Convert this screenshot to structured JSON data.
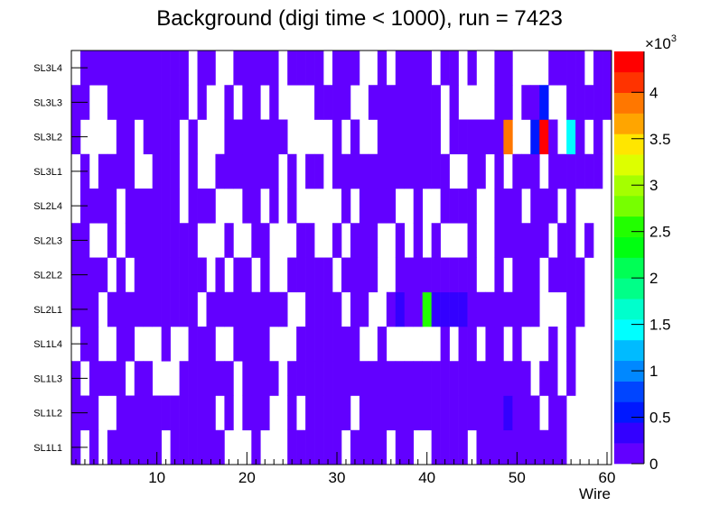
{
  "chart_data": {
    "type": "heatmap",
    "title": "Background (digi time < 1000), run = 7423",
    "xlabel": "Wire",
    "ylabel": "",
    "xlim": [
      0.5,
      60.5
    ],
    "x_ticks": [
      10,
      20,
      30,
      40,
      50,
      60
    ],
    "y_categories": [
      "SL1L1",
      "SL1L2",
      "SL1L3",
      "SL1L4",
      "SL2L1",
      "SL2L2",
      "SL2L3",
      "SL2L4",
      "SL3L1",
      "SL3L2",
      "SL3L3",
      "SL3L4"
    ],
    "zlim": [
      0,
      4440
    ],
    "z_exponent_label": "×10",
    "z_exponent_power": "3",
    "z_ticks": [
      {
        "value": 0,
        "label": "0"
      },
      {
        "value": 500,
        "label": "0.5"
      },
      {
        "value": 1000,
        "label": "1"
      },
      {
        "value": 1500,
        "label": "1.5"
      },
      {
        "value": 2000,
        "label": "2"
      },
      {
        "value": 2500,
        "label": "2.5"
      },
      {
        "value": 3000,
        "label": "3"
      },
      {
        "value": 3500,
        "label": "3.5"
      },
      {
        "value": 4000,
        "label": "4"
      }
    ],
    "palette": [
      "#6200ff",
      "#3300ff",
      "#0018ff",
      "#0045ff",
      "#0088ff",
      "#00bbff",
      "#00ffff",
      "#00ffcc",
      "#00ff88",
      "#00ff55",
      "#00ff11",
      "#22ff00",
      "#77ff00",
      "#a5ff00",
      "#ddff00",
      "#ffe600",
      "#ffa500",
      "#ff7700",
      "#ff3300",
      "#ff0000"
    ],
    "z": [
      [
        100,
        0,
        100,
        0,
        100,
        100,
        100,
        100,
        100,
        100,
        0,
        100,
        100,
        100,
        100,
        100,
        100,
        0,
        0,
        0,
        100,
        0,
        0,
        0,
        100,
        100,
        100,
        100,
        100,
        100,
        0,
        100,
        100,
        100,
        100,
        0,
        100,
        100,
        0,
        0,
        100,
        100,
        100,
        100,
        0,
        100,
        100,
        100,
        100,
        100,
        100,
        100,
        100,
        100,
        100,
        0,
        0,
        0,
        0,
        0
      ],
      [
        100,
        100,
        100,
        0,
        0,
        100,
        100,
        100,
        100,
        100,
        100,
        100,
        100,
        100,
        100,
        100,
        0,
        100,
        0,
        100,
        100,
        100,
        0,
        0,
        100,
        0,
        100,
        100,
        100,
        100,
        100,
        0,
        100,
        100,
        100,
        100,
        100,
        100,
        100,
        100,
        100,
        100,
        100,
        100,
        100,
        100,
        100,
        100,
        300,
        100,
        100,
        100,
        0,
        100,
        100,
        0,
        0,
        0,
        0,
        0
      ],
      [
        100,
        0,
        100,
        100,
        100,
        100,
        0,
        100,
        100,
        0,
        0,
        0,
        100,
        100,
        100,
        100,
        100,
        100,
        0,
        100,
        100,
        100,
        100,
        0,
        100,
        100,
        100,
        100,
        100,
        100,
        100,
        100,
        100,
        100,
        100,
        100,
        100,
        100,
        100,
        100,
        100,
        100,
        100,
        100,
        100,
        100,
        100,
        100,
        100,
        100,
        100,
        0,
        100,
        100,
        0,
        100,
        0,
        0,
        0,
        0
      ],
      [
        0,
        100,
        100,
        0,
        0,
        100,
        100,
        0,
        0,
        0,
        100,
        0,
        0,
        100,
        100,
        100,
        0,
        0,
        100,
        100,
        100,
        100,
        0,
        0,
        0,
        100,
        100,
        100,
        100,
        100,
        100,
        100,
        0,
        0,
        100,
        0,
        0,
        0,
        0,
        0,
        0,
        100,
        0,
        100,
        100,
        0,
        100,
        100,
        0,
        100,
        0,
        0,
        0,
        100,
        0,
        100,
        0,
        0,
        0,
        0
      ],
      [
        100,
        100,
        100,
        0,
        100,
        100,
        100,
        100,
        100,
        100,
        100,
        100,
        100,
        100,
        0,
        100,
        100,
        100,
        100,
        100,
        100,
        100,
        100,
        100,
        0,
        0,
        100,
        100,
        100,
        100,
        0,
        100,
        100,
        0,
        0,
        100,
        300,
        100,
        100,
        2600,
        300,
        300,
        300,
        300,
        100,
        100,
        100,
        100,
        100,
        100,
        100,
        100,
        0,
        0,
        0,
        100,
        100,
        0,
        0,
        0
      ],
      [
        100,
        100,
        100,
        100,
        0,
        100,
        0,
        100,
        100,
        100,
        100,
        100,
        100,
        100,
        100,
        0,
        100,
        0,
        100,
        100,
        0,
        100,
        0,
        0,
        100,
        100,
        100,
        100,
        100,
        0,
        100,
        100,
        100,
        100,
        0,
        0,
        100,
        100,
        100,
        100,
        100,
        100,
        100,
        100,
        100,
        0,
        0,
        100,
        0,
        100,
        100,
        100,
        0,
        100,
        100,
        100,
        100,
        0,
        0,
        0
      ],
      [
        100,
        100,
        0,
        0,
        100,
        0,
        100,
        100,
        100,
        100,
        100,
        100,
        100,
        100,
        0,
        0,
        0,
        100,
        0,
        0,
        100,
        100,
        0,
        0,
        0,
        100,
        100,
        0,
        0,
        100,
        0,
        100,
        100,
        100,
        0,
        0,
        100,
        0,
        100,
        0,
        100,
        0,
        0,
        0,
        100,
        0,
        0,
        100,
        100,
        100,
        100,
        100,
        100,
        0,
        100,
        100,
        0,
        100,
        0,
        0
      ],
      [
        0,
        100,
        100,
        100,
        100,
        0,
        100,
        100,
        100,
        100,
        100,
        100,
        0,
        100,
        100,
        100,
        0,
        0,
        0,
        100,
        100,
        0,
        100,
        0,
        100,
        0,
        0,
        0,
        0,
        0,
        100,
        0,
        100,
        100,
        100,
        100,
        0,
        0,
        100,
        0,
        0,
        100,
        100,
        100,
        100,
        0,
        0,
        100,
        100,
        100,
        0,
        100,
        100,
        100,
        0,
        100,
        0,
        0,
        0,
        0
      ],
      [
        0,
        100,
        0,
        100,
        100,
        100,
        100,
        0,
        0,
        100,
        100,
        100,
        0,
        100,
        0,
        0,
        100,
        100,
        100,
        100,
        100,
        100,
        100,
        0,
        100,
        0,
        100,
        100,
        0,
        100,
        100,
        100,
        100,
        100,
        100,
        100,
        100,
        100,
        100,
        100,
        100,
        100,
        0,
        0,
        100,
        100,
        0,
        100,
        0,
        100,
        100,
        100,
        0,
        100,
        100,
        100,
        100,
        100,
        100,
        0
      ],
      [
        100,
        0,
        0,
        0,
        0,
        100,
        100,
        0,
        100,
        100,
        100,
        100,
        0,
        100,
        0,
        0,
        0,
        100,
        100,
        100,
        100,
        100,
        100,
        100,
        0,
        0,
        0,
        0,
        0,
        100,
        0,
        100,
        0,
        0,
        100,
        100,
        100,
        100,
        100,
        100,
        100,
        0,
        100,
        100,
        100,
        100,
        100,
        100,
        3900,
        0,
        0,
        550,
        4400,
        100,
        0,
        1500,
        100,
        0,
        100,
        0
      ],
      [
        100,
        100,
        0,
        0,
        100,
        100,
        100,
        100,
        100,
        100,
        100,
        100,
        100,
        0,
        100,
        0,
        0,
        100,
        0,
        100,
        100,
        0,
        100,
        0,
        0,
        0,
        0,
        100,
        100,
        100,
        100,
        0,
        0,
        100,
        100,
        100,
        100,
        100,
        100,
        100,
        100,
        0,
        100,
        0,
        0,
        0,
        0,
        100,
        100,
        0,
        100,
        100,
        550,
        0,
        0,
        100,
        100,
        100,
        100,
        100
      ],
      [
        0,
        100,
        100,
        100,
        100,
        100,
        100,
        100,
        100,
        100,
        100,
        100,
        100,
        0,
        100,
        100,
        0,
        0,
        100,
        100,
        100,
        100,
        100,
        0,
        100,
        100,
        100,
        100,
        0,
        100,
        100,
        100,
        0,
        0,
        100,
        0,
        100,
        100,
        100,
        100,
        0,
        100,
        100,
        0,
        100,
        0,
        0,
        100,
        100,
        0,
        0,
        0,
        0,
        100,
        100,
        100,
        100,
        0,
        100,
        100
      ]
    ]
  }
}
